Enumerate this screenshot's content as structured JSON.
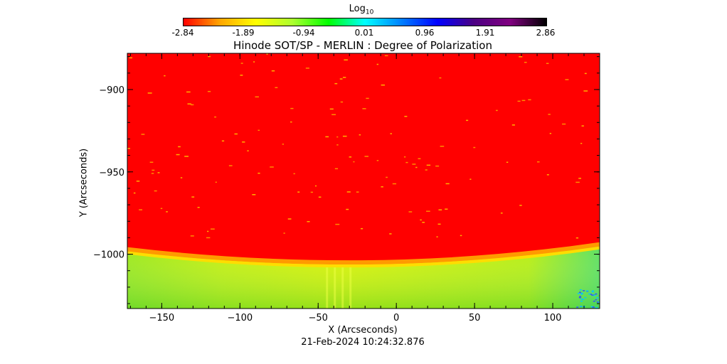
{
  "colorbar": {
    "label": "Log",
    "label_sub": "10",
    "ticks": [
      "-2.84",
      "-1.89",
      "-0.94",
      "0.01",
      "0.96",
      "1.91",
      "2.86"
    ],
    "colors": [
      "#ff0000",
      "#ffa500",
      "#ffff00",
      "#adff2f",
      "#00ff00",
      "#00ffff",
      "#0080ff",
      "#0000ff",
      "#4b0082",
      "#800080",
      "#000000"
    ]
  },
  "footer": {
    "timestamp": "21-Feb-2024 10:24:32.876"
  },
  "chart_data": {
    "type": "heatmap",
    "title": "Hinode SOT/SP - MERLIN : Degree of Polarization",
    "xlabel": "X (Arcseconds)",
    "ylabel": "Y (Arcseconds)",
    "xlim": [
      -172,
      130
    ],
    "ylim": [
      -1033,
      -878
    ],
    "x_ticks": [
      -150,
      -100,
      -50,
      0,
      50,
      100
    ],
    "y_ticks": [
      -900,
      -950,
      -1000
    ],
    "x_tick_labels": [
      "−150",
      "−100",
      "−50",
      "0",
      "50",
      "100"
    ],
    "y_tick_labels": [
      "−900",
      "−950",
      "−1000"
    ],
    "limb": {
      "y_at_left": -997,
      "y_at_min": -1005,
      "x_at_min": -30,
      "y_at_right": -994
    },
    "regions": [
      {
        "name": "disk",
        "value": -2.84,
        "color": "#ff0000"
      },
      {
        "name": "limb-edge",
        "value": -1.5,
        "color": "#ffdd00"
      },
      {
        "name": "off-limb",
        "value": -0.6,
        "color": "#c8f000"
      }
    ]
  }
}
